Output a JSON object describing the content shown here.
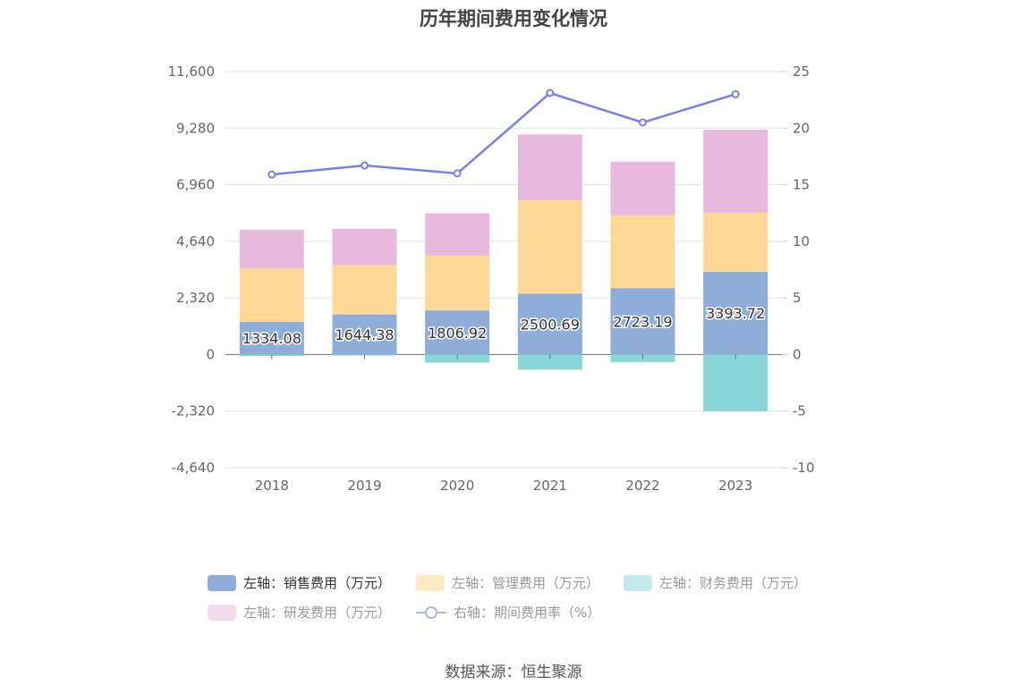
{
  "chart_data": {
    "type": "bar",
    "title": "历年期间费用变化情况",
    "categories": [
      "2018",
      "2019",
      "2020",
      "2021",
      "2022",
      "2023"
    ],
    "left_axis": {
      "ticks": [
        "11,600",
        "9,280",
        "6,960",
        "4,640",
        "2,320",
        "0",
        "-2,320",
        "-4,640"
      ],
      "ylim": [
        -4640,
        11600
      ]
    },
    "right_axis": {
      "ticks": [
        "25",
        "20",
        "15",
        "10",
        "5",
        "0",
        "-5",
        "-10"
      ],
      "ylim": [
        -10,
        25
      ]
    },
    "series": [
      {
        "name": "左轴：销售费用（万元）",
        "axis": "left",
        "kind": "bar",
        "color": "#8eadd9",
        "values": [
          1334.08,
          1644.38,
          1806.92,
          2500.69,
          2723.19,
          3393.72
        ],
        "labels": [
          "1334.08",
          "1644.38",
          "1806.92",
          "2500.69",
          "2723.19",
          "3393.72"
        ]
      },
      {
        "name": "左轴：管理费用（万元）",
        "axis": "left",
        "kind": "bar",
        "color": "#ffd898",
        "values": [
          2200,
          2030,
          2250,
          3820,
          2980,
          2420
        ]
      },
      {
        "name": "左轴：财务费用（万元）",
        "axis": "left",
        "kind": "bar",
        "color": "#88d6d8",
        "values": [
          -60,
          -40,
          -330,
          -620,
          -310,
          -2320
        ]
      },
      {
        "name": "左轴：研发费用（万元）",
        "axis": "left",
        "kind": "bar",
        "color": "#e8b9dc",
        "values": [
          1580,
          1480,
          1730,
          2700,
          2200,
          3400
        ]
      },
      {
        "name": "右轴：期间费用率（%）",
        "axis": "right",
        "kind": "line",
        "color": "#7b7fe8",
        "values": [
          15.9,
          16.7,
          16.0,
          23.1,
          20.5,
          23.0
        ]
      }
    ],
    "legend": [
      {
        "label": "左轴：销售费用（万元）",
        "color": "#8eadd9",
        "kind": "bar",
        "active": true
      },
      {
        "label": "左轴：管理费用（万元）",
        "color": "#ffe9c2",
        "kind": "bar",
        "active": false
      },
      {
        "label": "左轴：财务费用（万元）",
        "color": "#c3e9ec",
        "kind": "bar",
        "active": false
      },
      {
        "label": "左轴：研发费用（万元）",
        "color": "#f3dcee",
        "kind": "bar",
        "active": false
      },
      {
        "label": "右轴：期间费用率（%）",
        "color": "#b3b6f2",
        "kind": "line",
        "active": false
      }
    ],
    "grid": true,
    "legend_position": "bottom"
  },
  "source": "数据来源：恒生聚源"
}
